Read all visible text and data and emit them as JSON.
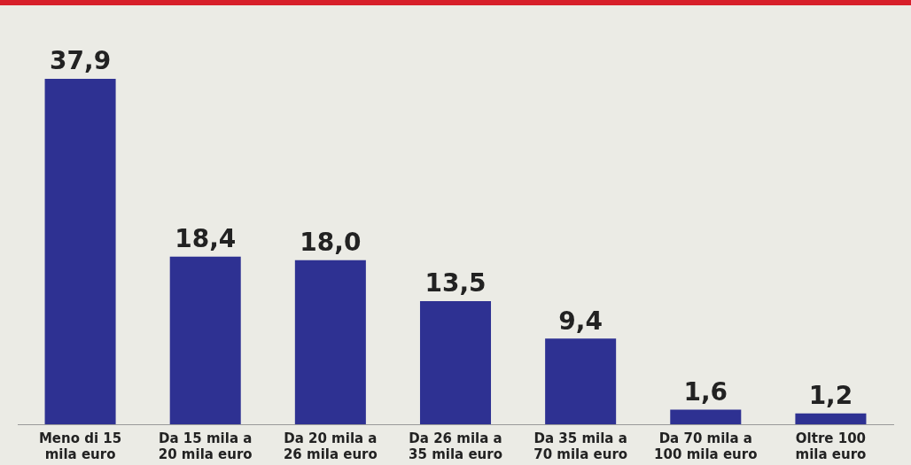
{
  "chart_data": {
    "type": "bar",
    "categories": [
      "Meno di 15 mila euro",
      "Da 15 mila a 20 mila euro",
      "Da 20 mila a 26 mila euro",
      "Da 26 mila a 35 mila euro",
      "Da 35 mila a 70 mila euro",
      "Da 70 mila a 100 mila euro",
      "Oltre 100 mila euro"
    ],
    "values": [
      37.9,
      18.4,
      18.0,
      13.5,
      9.4,
      1.6,
      1.2
    ],
    "value_labels": [
      "37,9",
      "18,4",
      "18,0",
      "13,5",
      "9,4",
      "1,6",
      "1,2"
    ],
    "color": "#2e3192",
    "grid": false,
    "legend": false
  }
}
